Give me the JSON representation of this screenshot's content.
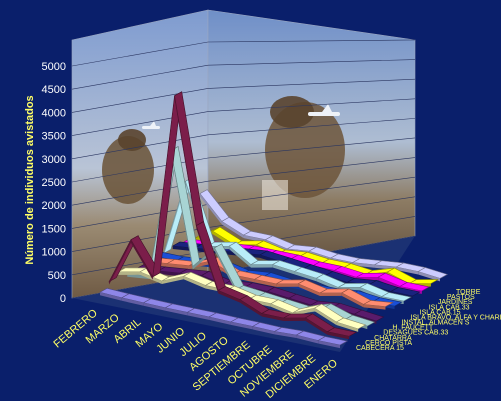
{
  "chart_data": {
    "type": "area",
    "style": "3d-ribbon",
    "ylabel": "Número de individuos avistados",
    "ylim": [
      0,
      5000
    ],
    "yticks": [
      0,
      500,
      1000,
      1500,
      2000,
      2500,
      3000,
      3500,
      4000,
      4500,
      5000
    ],
    "categories": [
      "FEBRERO",
      "MARZO",
      "ABRIL",
      "MAYO",
      "JUNIO",
      "JULIO",
      "AGOSTO",
      "SEPTIEMBRE",
      "OCTUBRE",
      "NOVIEMBRE",
      "DICIEMBRE",
      "ENERO"
    ],
    "series": [
      {
        "name": "CABECERA 15",
        "color": "#8e86e8",
        "values": [
          80,
          60,
          50,
          40,
          40,
          40,
          30,
          30,
          20,
          40,
          20,
          20
        ]
      },
      {
        "name": "CERCO PISTA",
        "color": "#7b1e4a",
        "values": [
          200,
          1200,
          500,
          4500,
          1800,
          500,
          400,
          200,
          200,
          300,
          100,
          100
        ]
      },
      {
        "name": "CHATARRA",
        "color": "#ffffc0",
        "values": [
          300,
          400,
          300,
          500,
          400,
          400,
          300,
          300,
          200,
          400,
          200,
          150
        ]
      },
      {
        "name": "DESAGÜES CAB.33",
        "color": "#a8d4d4",
        "values": [
          150,
          200,
          3000,
          600,
          1100,
          300,
          250,
          200,
          150,
          300,
          150,
          100
        ]
      },
      {
        "name": "H. FAUCETT",
        "color": "#5a1b6b",
        "values": [
          150,
          200,
          250,
          300,
          200,
          250,
          250,
          200,
          150,
          200,
          150,
          100
        ]
      },
      {
        "name": "INSTAL. ALMACEN S",
        "color": "#ff8c70",
        "values": [
          200,
          250,
          300,
          500,
          300,
          300,
          300,
          400,
          300,
          400,
          250,
          300
        ]
      },
      {
        "name": "ISLA BRAVO, ALFA Y CHARLIE",
        "color": "#1a4fd6",
        "values": [
          200,
          200,
          250,
          300,
          200,
          250,
          200,
          200,
          200,
          250,
          200,
          200
        ]
      },
      {
        "name": "ISLA CAB.15",
        "color": "#b8ecf8",
        "values": [
          150,
          1800,
          500,
          600,
          300,
          400,
          350,
          300,
          200,
          300,
          200,
          200
        ]
      },
      {
        "name": "ISLA CAB.33",
        "color": "#1a237e",
        "values": [
          200,
          250,
          300,
          350,
          400,
          350,
          300,
          250,
          200,
          250,
          200,
          200
        ]
      },
      {
        "name": "JARDINES",
        "color": "#ff00ff",
        "values": [
          150,
          200,
          250,
          300,
          300,
          300,
          250,
          250,
          200,
          300,
          200,
          200
        ]
      },
      {
        "name": "PASTOS",
        "color": "#ffff00",
        "values": [
          100,
          400,
          200,
          300,
          200,
          250,
          200,
          200,
          150,
          300,
          150,
          250
        ]
      },
      {
        "name": "TORRE",
        "color": "#ccccff",
        "values": [
          1000,
          500,
          300,
          300,
          200,
          250,
          200,
          200,
          250,
          300,
          300,
          250
        ]
      }
    ]
  }
}
